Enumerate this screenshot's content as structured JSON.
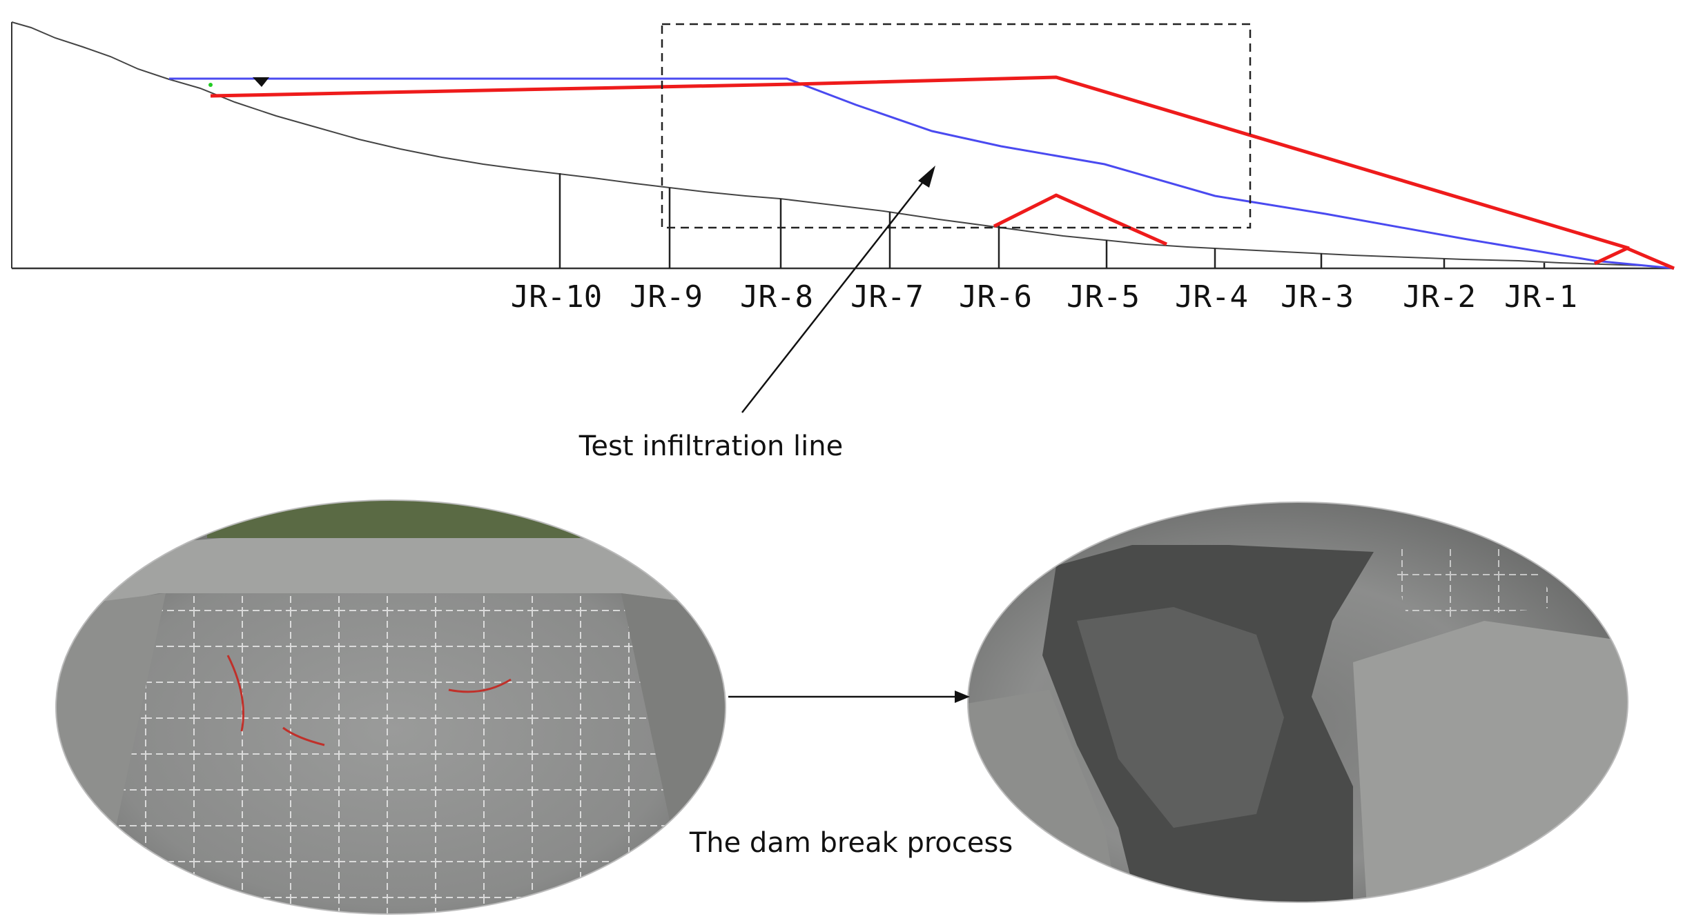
{
  "section_labels": [
    "JR-10",
    "JR-9",
    "JR-8",
    "JR-7",
    "JR-6",
    "JR-5",
    "JR-4",
    "JR-3",
    "JR-2",
    "JR-1"
  ],
  "annotations": {
    "infiltration_label": "Test infiltration line",
    "process_label": "The dam break process"
  },
  "colors": {
    "terrain": "#444444",
    "phreatic_line": "#4a4af0",
    "test_infiltration_line": "#ee1b1b",
    "frame": "#222222"
  }
}
